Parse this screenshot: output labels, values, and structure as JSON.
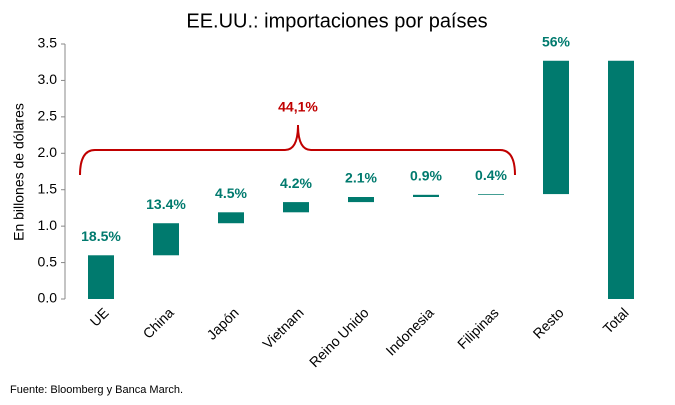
{
  "chart_data": {
    "type": "waterfall",
    "title": "EE.UU.: importaciones por países",
    "y_label": "En billones de dólares",
    "categories": [
      "UE",
      "China",
      "Japón",
      "Vietnam",
      "Reino Unido",
      "Indonesia",
      "Filipinas",
      "Resto",
      "Total"
    ],
    "values": [
      0.6,
      0.44,
      0.15,
      0.14,
      0.07,
      0.03,
      0.01,
      1.83,
      3.27
    ],
    "last_is_total": true,
    "share_labels": [
      "18.5%",
      "13.4%",
      "4.5%",
      "4.2%",
      "2.1%",
      "0.9%",
      "0.4%",
      "56%",
      null
    ],
    "bracket_label": "44,1%",
    "color": "#007a6e",
    "bracket_color": "#c00000",
    "ylim": [
      0,
      3.5
    ],
    "yticks": [
      {
        "value": 0,
        "label": "0.0"
      },
      {
        "value": 0.5,
        "label": "0.5"
      },
      {
        "value": 1,
        "label": "1.0"
      },
      {
        "value": 1.5,
        "label": "1.5"
      },
      {
        "value": 2,
        "label": "2.0"
      },
      {
        "value": 2.5,
        "label": "2.5"
      },
      {
        "value": 3,
        "label": "3.0"
      },
      {
        "value": 3.5,
        "label": "3.5"
      }
    ],
    "source": "Fuente: Bloomberg y Banca March."
  }
}
